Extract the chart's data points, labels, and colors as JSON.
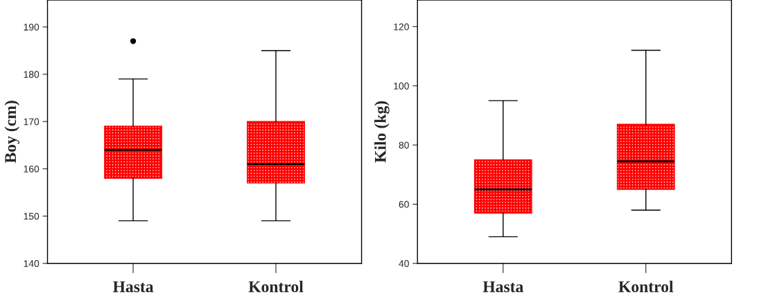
{
  "chart_data": [
    {
      "type": "box",
      "ylabel": "Boy (cm)",
      "categories": [
        "Hasta",
        "Kontrol"
      ],
      "color": "#ff0000",
      "ylim": [
        140,
        195.7
      ],
      "yticks": [
        140,
        150,
        160,
        170,
        180,
        190
      ],
      "grid": false,
      "boxes": [
        {
          "low": 149,
          "q1": 158,
          "median": 164,
          "q3": 169,
          "high": 179,
          "outliers": [
            187
          ]
        },
        {
          "low": 149,
          "q1": 157,
          "median": 161,
          "q3": 170,
          "high": 185
        }
      ]
    },
    {
      "type": "box",
      "ylabel": "Kilo (kg)",
      "categories": [
        "Hasta",
        "Kontrol"
      ],
      "color": "#ff0000",
      "ylim": [
        40,
        129
      ],
      "yticks": [
        40,
        60,
        80,
        100,
        120
      ],
      "grid": false,
      "boxes": [
        {
          "low": 49,
          "q1": 57,
          "median": 65,
          "q3": 75,
          "high": 95
        },
        {
          "low": 58,
          "q1": 65,
          "median": 74.5,
          "q3": 87,
          "high": 112
        }
      ]
    }
  ]
}
